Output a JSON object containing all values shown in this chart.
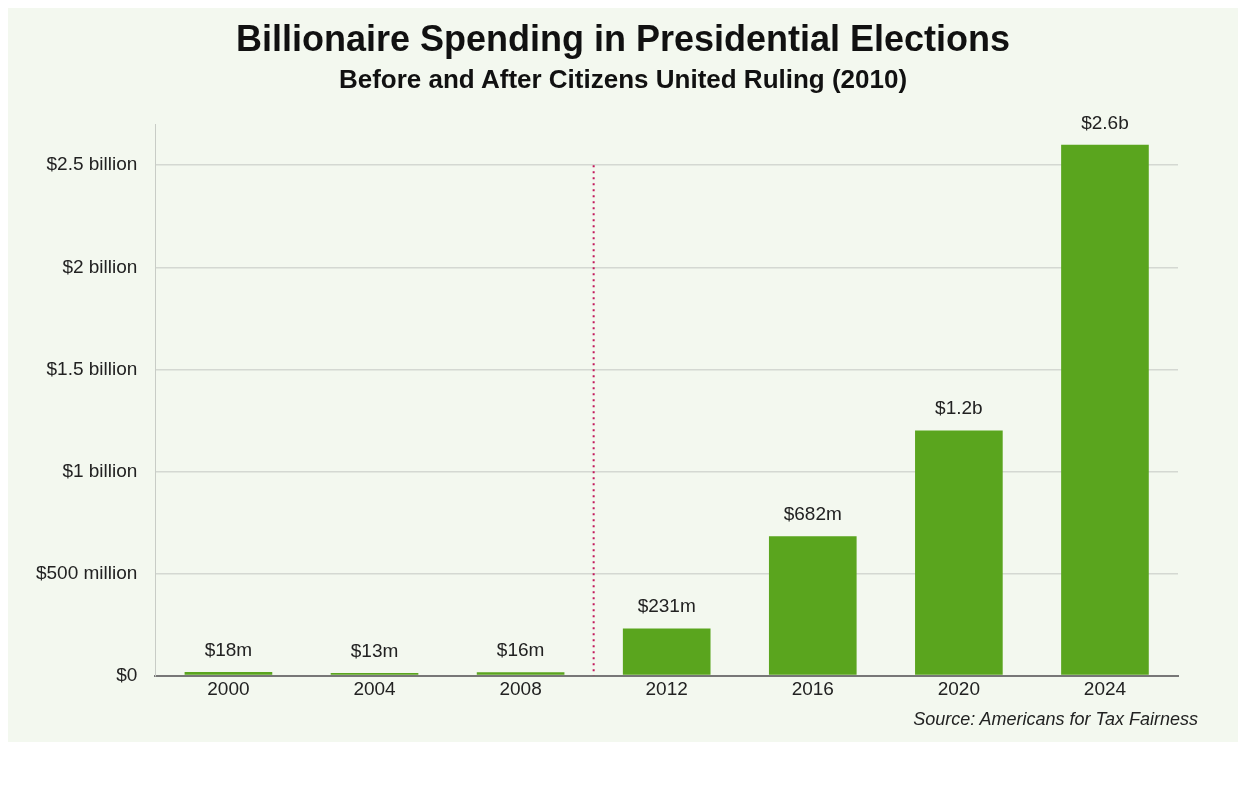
{
  "chart_data": {
    "type": "bar",
    "title": "Billionaire Spending in Presidential Elections",
    "subtitle": "Before and After Citizens United Ruling (2010)",
    "x": [
      2000,
      2004,
      2008,
      2012,
      2016,
      2020,
      2024
    ],
    "values": [
      18000000,
      13000000,
      16000000,
      231000000,
      682000000,
      1200000000,
      2600000000
    ],
    "value_labels": [
      "$18m",
      "$13m",
      "$16m",
      "$231m",
      "$682m",
      "$1.2b",
      "$2.6b"
    ],
    "color": "#5aa51e",
    "xlim": [
      1998,
      2026
    ],
    "xticks": [
      2000,
      2004,
      2008,
      2012,
      2016,
      2020,
      2024
    ],
    "ylim": [
      0,
      2700000000
    ],
    "yticks": [
      {
        "value": 0,
        "label": "$0"
      },
      {
        "value": 500000000,
        "label": "$500 million"
      },
      {
        "value": 1000000000,
        "label": "$1 billion"
      },
      {
        "value": 1500000000,
        "label": "$1.5 billion"
      },
      {
        "value": 2000000000,
        "label": "$2 billion"
      },
      {
        "value": 2500000000,
        "label": "$2.5 billion"
      }
    ],
    "grid": "y",
    "legend": false,
    "ref_lines": [
      {
        "axis": "x",
        "value": 2010,
        "color": "#c2185b",
        "line_style": "dotted"
      }
    ],
    "annotations": [
      "Source: Americans for Tax Fairness"
    ]
  }
}
